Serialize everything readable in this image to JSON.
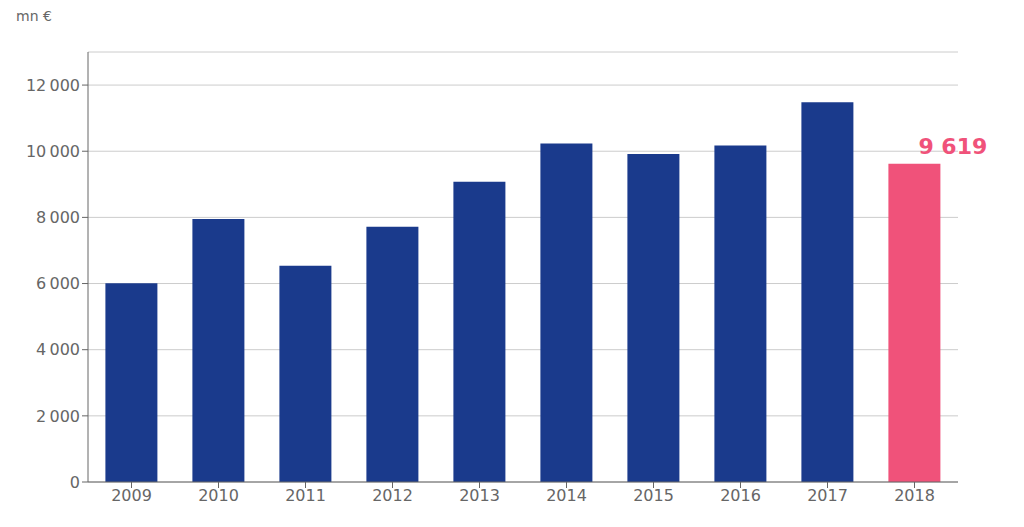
{
  "chart_data": {
    "type": "bar",
    "ylabel": "mn €",
    "categories": [
      "2009",
      "2010",
      "2011",
      "2012",
      "2013",
      "2014",
      "2015",
      "2016",
      "2017",
      "2018"
    ],
    "values": [
      6010,
      7950,
      6540,
      7720,
      9080,
      10230,
      9920,
      10170,
      11480,
      9619
    ],
    "colors": [
      "#1a3a8c",
      "#1a3a8c",
      "#1a3a8c",
      "#1a3a8c",
      "#1a3a8c",
      "#1a3a8c",
      "#1a3a8c",
      "#1a3a8c",
      "#1a3a8c",
      "#f0527a"
    ],
    "ylim": [
      0,
      13000
    ],
    "yticks": [
      0,
      {
        "value": 2000,
        "label": "2 000"
      },
      {
        "value": 4000,
        "label": "4 000"
      },
      {
        "value": 6000,
        "label": "6 000"
      },
      {
        "value": 8000,
        "label": "8 000"
      },
      {
        "value": 10000,
        "label": "10 000"
      },
      {
        "value": 12000,
        "label": "12 000"
      }
    ],
    "grid": true,
    "annotations": [
      {
        "text": "9 619",
        "x": "2018",
        "color": "#f0527a"
      }
    ]
  }
}
